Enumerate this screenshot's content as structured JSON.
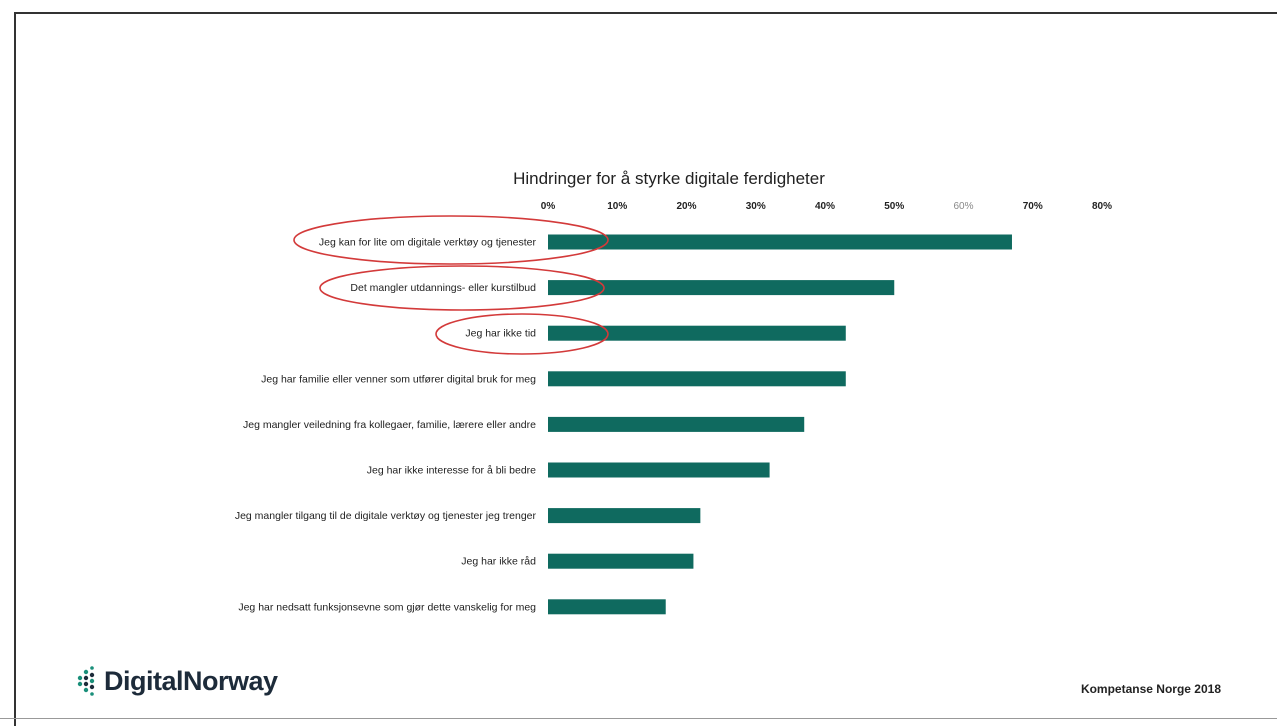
{
  "chart_data": {
    "type": "bar",
    "orientation": "horizontal",
    "title": "Hindringer for å styrke digitale ferdigheter",
    "xlabel": "",
    "ylabel": "",
    "xlim": [
      0,
      80
    ],
    "ticks": [
      "0%",
      "10%",
      "20%",
      "30%",
      "40%",
      "50%",
      "60%",
      "70%",
      "80%"
    ],
    "tick_values": [
      0,
      10,
      20,
      30,
      40,
      50,
      60,
      70,
      80
    ],
    "grid": false,
    "bar_color": "#0f6a5f",
    "highlight_color": "#d33a3a",
    "categories": [
      "Jeg kan for lite om digitale verktøy og tjenester",
      "Det mangler utdannings- eller kurstilbud",
      "Jeg har ikke tid",
      "Jeg har familie eller venner som utfører digital bruk for meg",
      "Jeg mangler veiledning fra kollegaer, familie, lærere eller andre",
      "Jeg har ikke interesse for å bli bedre",
      "Jeg mangler tilgang til de digitale verktøy og tjenester jeg trenger",
      "Jeg har ikke råd",
      "Jeg har nedsatt funksjonsevne som gjør dette vanskelig for meg"
    ],
    "values": [
      67,
      50,
      43,
      43,
      37,
      32,
      22,
      21,
      17
    ],
    "highlighted": [
      true,
      true,
      true,
      false,
      false,
      false,
      false,
      false,
      false
    ]
  },
  "footer": {
    "logo_text": "DigitalNorway",
    "source": "Kompetanse Norge 2018"
  },
  "icons": {
    "logo": "digitalnorway-dots-icon"
  }
}
